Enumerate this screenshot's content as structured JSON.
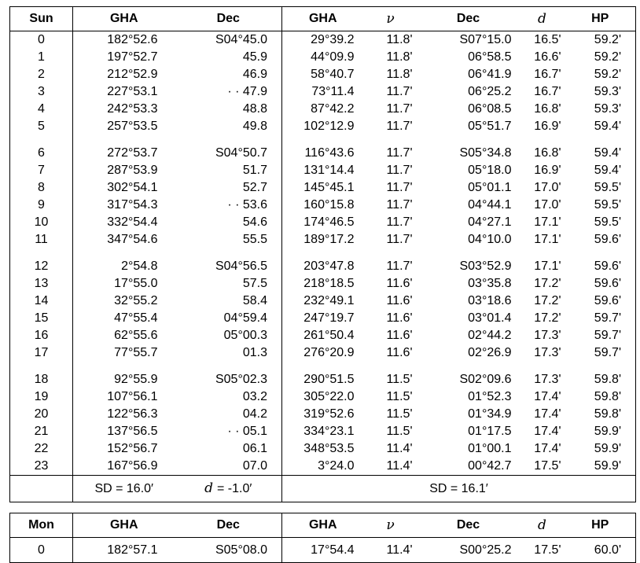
{
  "meta": {
    "background_color": "#ffffff",
    "border_color": "#000000",
    "text_color": "#000000"
  },
  "day1": {
    "label": "Sun",
    "headers": {
      "sun_gha": "GHA",
      "sun_dec": "Dec",
      "moon_gha": "GHA",
      "moon_nu": "ν",
      "moon_dec": "Dec",
      "moon_d": "d",
      "moon_hp": "HP"
    },
    "rows": [
      [
        "0",
        "182°52.6",
        "S04°45.0",
        "29°39.2",
        "11.8'",
        "S07°15.0",
        "16.5'",
        "59.2'"
      ],
      [
        "1",
        "197°52.7",
        "45.9",
        "44°09.9",
        "11.8'",
        "06°58.5",
        "16.6'",
        "59.2'"
      ],
      [
        "2",
        "212°52.9",
        "46.9",
        "58°40.7",
        "11.8'",
        "06°41.9",
        "16.7'",
        "59.2'"
      ],
      [
        "3",
        "227°53.1",
        "· · 47.9",
        "73°11.4",
        "11.7'",
        "06°25.2",
        "16.7'",
        "59.3'"
      ],
      [
        "4",
        "242°53.3",
        "48.8",
        "87°42.2",
        "11.7'",
        "06°08.5",
        "16.8'",
        "59.3'"
      ],
      [
        "5",
        "257°53.5",
        "49.8",
        "102°12.9",
        "11.7'",
        "05°51.7",
        "16.9'",
        "59.4'"
      ],
      [
        "6",
        "272°53.7",
        "S04°50.7",
        "116°43.6",
        "11.7'",
        "S05°34.8",
        "16.8'",
        "59.4'"
      ],
      [
        "7",
        "287°53.9",
        "51.7",
        "131°14.4",
        "11.7'",
        "05°18.0",
        "16.9'",
        "59.4'"
      ],
      [
        "8",
        "302°54.1",
        "52.7",
        "145°45.1",
        "11.7'",
        "05°01.1",
        "17.0'",
        "59.5'"
      ],
      [
        "9",
        "317°54.3",
        "· · 53.6",
        "160°15.8",
        "11.7'",
        "04°44.1",
        "17.0'",
        "59.5'"
      ],
      [
        "10",
        "332°54.4",
        "54.6",
        "174°46.5",
        "11.7'",
        "04°27.1",
        "17.1'",
        "59.5'"
      ],
      [
        "11",
        "347°54.6",
        "55.5",
        "189°17.2",
        "11.7'",
        "04°10.0",
        "17.1'",
        "59.6'"
      ],
      [
        "12",
        "2°54.8",
        "S04°56.5",
        "203°47.8",
        "11.7'",
        "S03°52.9",
        "17.1'",
        "59.6'"
      ],
      [
        "13",
        "17°55.0",
        "57.5",
        "218°18.5",
        "11.6'",
        "03°35.8",
        "17.2'",
        "59.6'"
      ],
      [
        "14",
        "32°55.2",
        "58.4",
        "232°49.1",
        "11.6'",
        "03°18.6",
        "17.2'",
        "59.6'"
      ],
      [
        "15",
        "47°55.4",
        "04°59.4",
        "247°19.7",
        "11.6'",
        "03°01.4",
        "17.2'",
        "59.7'"
      ],
      [
        "16",
        "62°55.6",
        "05°00.3",
        "261°50.4",
        "11.6'",
        "02°44.2",
        "17.3'",
        "59.7'"
      ],
      [
        "17",
        "77°55.7",
        "01.3",
        "276°20.9",
        "11.6'",
        "02°26.9",
        "17.3'",
        "59.7'"
      ],
      [
        "18",
        "92°55.9",
        "S05°02.3",
        "290°51.5",
        "11.5'",
        "S02°09.6",
        "17.3'",
        "59.8'"
      ],
      [
        "19",
        "107°56.1",
        "03.2",
        "305°22.0",
        "11.5'",
        "01°52.3",
        "17.4'",
        "59.8'"
      ],
      [
        "20",
        "122°56.3",
        "04.2",
        "319°52.6",
        "11.5'",
        "01°34.9",
        "17.4'",
        "59.8'"
      ],
      [
        "21",
        "137°56.5",
        "· · 05.1",
        "334°23.1",
        "11.5'",
        "01°17.5",
        "17.4'",
        "59.9'"
      ],
      [
        "22",
        "152°56.7",
        "06.1",
        "348°53.5",
        "11.4'",
        "01°00.1",
        "17.4'",
        "59.9'"
      ],
      [
        "23",
        "167°56.9",
        "07.0",
        "3°24.0",
        "11.4'",
        "00°42.7",
        "17.5'",
        "59.9'"
      ]
    ],
    "footer": {
      "sun_sd": "SD = 16.0′",
      "d_symbol": "d",
      "d_value": "= -1.0′",
      "moon_sd": "SD = 16.1′"
    }
  },
  "day2": {
    "label": "Mon",
    "headers": {
      "sun_gha": "GHA",
      "sun_dec": "Dec",
      "moon_gha": "GHA",
      "moon_nu": "ν",
      "moon_dec": "Dec",
      "moon_d": "d",
      "moon_hp": "HP"
    },
    "rows": [
      [
        "0",
        "182°57.1",
        "S05°08.0",
        "17°54.4",
        "11.4'",
        "S00°25.2",
        "17.5'",
        "60.0'"
      ]
    ]
  }
}
